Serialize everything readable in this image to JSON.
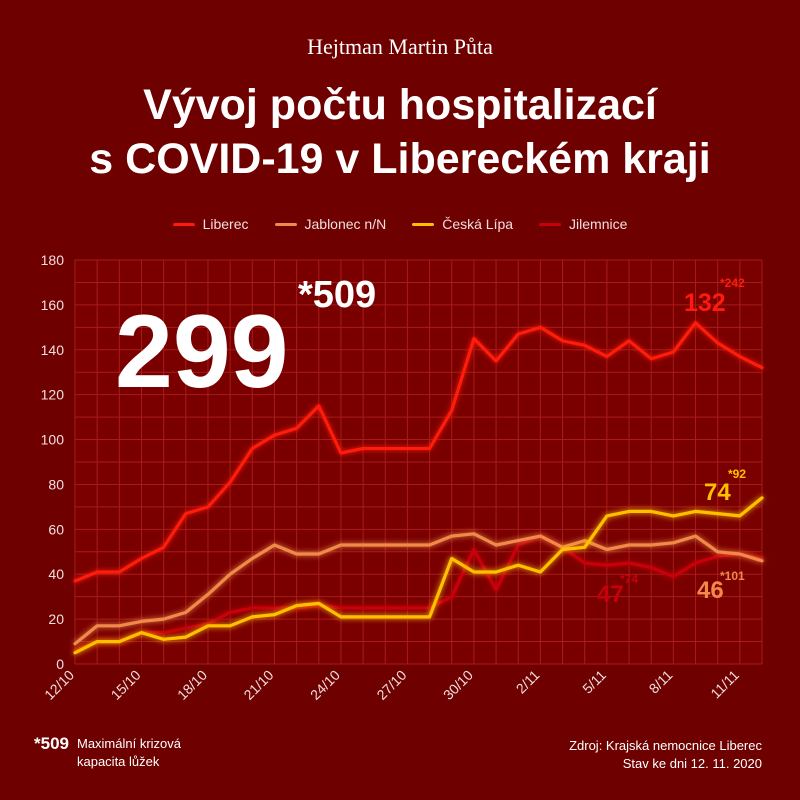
{
  "header": {
    "author": "Hejtman Martin Půta",
    "title_line1": "Vývoj počtu hospitalizací",
    "title_line2": "s COVID-19 v Libereckém kraji"
  },
  "colors": {
    "background": "#6e0000",
    "Liberec": "#ff1a0d",
    "Jablonec n/N": "#f08a4a",
    "Česká Lípa": "#ffc000",
    "Jilemnice": "#c8000a"
  },
  "highlight": {
    "total": "299",
    "capacity": "*509"
  },
  "series_labels": {
    "Liberec": {
      "value": "132",
      "capacity": "*242"
    },
    "Česká Lípa": {
      "value": "74",
      "capacity": "*92"
    },
    "Jablonec n/N": {
      "value": "46",
      "capacity": "*101"
    },
    "Jilemnice": {
      "value": "47",
      "capacity": "*74"
    }
  },
  "chart_data": {
    "type": "line",
    "x": [
      "12/10",
      "13/10",
      "14/10",
      "15/10",
      "16/10",
      "17/10",
      "18/10",
      "19/10",
      "20/10",
      "21/10",
      "22/10",
      "23/10",
      "24/10",
      "25/10",
      "26/10",
      "27/10",
      "28/10",
      "29/10",
      "30/10",
      "31/10",
      "1/11",
      "2/11",
      "3/11",
      "4/11",
      "5/11",
      "6/11",
      "7/11",
      "8/11",
      "9/11",
      "10/11",
      "11/11",
      "12/11"
    ],
    "tick_labels": [
      "12/10",
      "15/10",
      "18/10",
      "21/10",
      "24/10",
      "27/10",
      "30/10",
      "2/11",
      "5/11",
      "8/11",
      "11/11"
    ],
    "ylim": [
      0,
      180
    ],
    "yticks": [
      0,
      20,
      40,
      60,
      80,
      100,
      120,
      140,
      160,
      180
    ],
    "grid": true,
    "legend_position": "top",
    "series": [
      {
        "name": "Liberec",
        "values": [
          37,
          41,
          41,
          47,
          52,
          67,
          70,
          81,
          96,
          102,
          105,
          115,
          94,
          96,
          96,
          96,
          96,
          113,
          145,
          135,
          147,
          150,
          144,
          142,
          137,
          144,
          136,
          139,
          152,
          143,
          137,
          132
        ]
      },
      {
        "name": "Jablonec n/N",
        "values": [
          9,
          17,
          17,
          19,
          20,
          23,
          31,
          40,
          47,
          53,
          49,
          49,
          53,
          53,
          53,
          53,
          53,
          57,
          58,
          53,
          55,
          57,
          52,
          55,
          51,
          53,
          53,
          54,
          57,
          50,
          49,
          46
        ]
      },
      {
        "name": "Česká Lípa",
        "values": [
          5,
          10,
          10,
          14,
          11,
          12,
          17,
          17,
          21,
          22,
          26,
          27,
          21,
          21,
          21,
          21,
          21,
          47,
          41,
          41,
          44,
          41,
          51,
          52,
          66,
          68,
          68,
          66,
          68,
          67,
          66,
          74
        ]
      },
      {
        "name": "Jilemnice",
        "values": [
          6,
          10,
          10,
          14,
          14,
          16,
          18,
          23,
          25,
          25,
          25,
          26,
          25,
          25,
          25,
          25,
          25,
          30,
          51,
          33,
          53,
          57,
          52,
          45,
          44,
          45,
          43,
          39,
          45,
          48,
          49,
          47
        ]
      }
    ]
  },
  "footer": {
    "note_star": "*509",
    "note_line1": "Maximální krizová",
    "note_line2": "kapacita lůžek",
    "source_line1": "Zdroj: Krajská nemocnice Liberec",
    "source_line2": "Stav ke dni 12. 11. 2020"
  }
}
